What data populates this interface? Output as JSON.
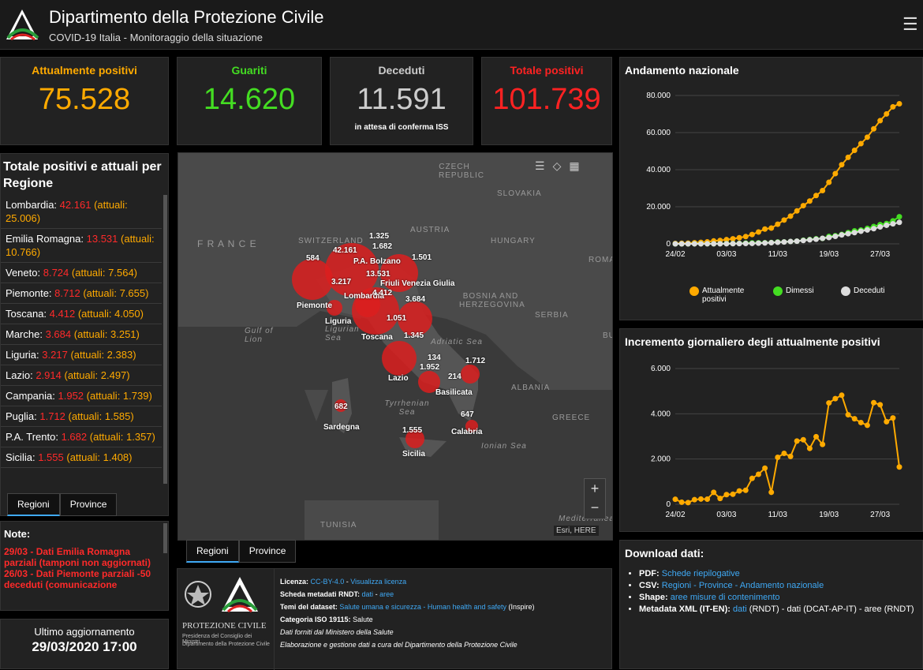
{
  "header": {
    "title": "Dipartimento della Protezione Civile",
    "subtitle": "COVID-19 Italia - Monitoraggio della situazione"
  },
  "stats": [
    {
      "label": "Attualmente positivi",
      "value": "75.528",
      "color": "#ffaa00"
    },
    {
      "label": "Guariti",
      "value": "14.620",
      "color": "#44dd22"
    },
    {
      "label": "Deceduti",
      "value": "11.591",
      "color": "#cccccc",
      "note": "in attesa di conferma ISS"
    },
    {
      "label": "Totale positivi",
      "value": "101.739",
      "color": "#ff2222"
    }
  ],
  "regions": {
    "title": "Totale positivi e attuali per Regione",
    "items": [
      {
        "name": "Lombardia:",
        "total": "42.161",
        "attuali": "(attuali: 25.006)"
      },
      {
        "name": "Emilia Romagna:",
        "total": "13.531",
        "attuali": "(attuali: 10.766)"
      },
      {
        "name": "Veneto:",
        "total": "8.724",
        "attuali": "(attuali: 7.564)"
      },
      {
        "name": "Piemonte:",
        "total": "8.712",
        "attuali": "(attuali: 7.655)"
      },
      {
        "name": "Toscana:",
        "total": "4.412",
        "attuali": "(attuali: 4.050)"
      },
      {
        "name": "Marche:",
        "total": "3.684",
        "attuali": "(attuali: 3.251)"
      },
      {
        "name": "Liguria:",
        "total": "3.217",
        "attuali": "(attuali: 2.383)"
      },
      {
        "name": "Lazio:",
        "total": "2.914",
        "attuali": "(attuali: 2.497)"
      },
      {
        "name": "Campania:",
        "total": "1.952",
        "attuali": "(attuali: 1.739)"
      },
      {
        "name": "Puglia:",
        "total": "1.712",
        "attuali": "(attuali: 1.585)"
      },
      {
        "name": "P.A. Trento:",
        "total": "1.682",
        "attuali": "(attuali: 1.357)"
      },
      {
        "name": "Sicilia:",
        "total": "1.555",
        "attuali": "(attuali: 1.408)"
      }
    ],
    "tabs": [
      "Regioni",
      "Province"
    ]
  },
  "notes": {
    "title": "Note:",
    "lines": [
      "29/03 - Dati  Emilia Romagna parziali (tamponi non aggiornati)",
      "26/03 - Dati Piemonte parziali -50 deceduti (comunicazione"
    ]
  },
  "update": {
    "label": "Ultimo aggiornamento",
    "value": "29/03/2020 17:00"
  },
  "map": {
    "tabs": [
      "Regioni",
      "Province"
    ],
    "attribution": "Esri, HERE",
    "geo_labels": [
      "CZECH REPUBLIC",
      "SLOVAKIA",
      "AUSTRIA",
      "HUNGARY",
      "F R A N C E",
      "SWITZERLAND",
      "ROMA",
      "BOSNIA AND HERZEGOVINA",
      "SERBIA",
      "Gulf of Lion",
      "Adriatic Sea",
      "Ligurian Sea",
      "Tyrrhenian Sea",
      "ALBANIA",
      "GREECE",
      "Ionian Sea",
      "TUNISIA",
      "Mediterranean",
      "BU"
    ],
    "bubbles": [
      {
        "label": "584"
      },
      {
        "label": "42.161"
      },
      {
        "label": "1.325"
      },
      {
        "label": "1.682"
      },
      {
        "label": "P.A. Bolzano"
      },
      {
        "label": "1.501"
      },
      {
        "label": "13.531"
      },
      {
        "label": "Friuli Venezia Giulia"
      },
      {
        "label": "3.217"
      },
      {
        "label": "Lombardia"
      },
      {
        "label": "4.412"
      },
      {
        "label": "Piemonte"
      },
      {
        "label": "3.684"
      },
      {
        "label": "Liguria"
      },
      {
        "label": "1.051"
      },
      {
        "label": "Toscana"
      },
      {
        "label": "1.345"
      },
      {
        "label": "134"
      },
      {
        "label": "1.712"
      },
      {
        "label": "1.952"
      },
      {
        "label": "Lazio"
      },
      {
        "label": "214"
      },
      {
        "label": "Basilicata"
      },
      {
        "label": "682"
      },
      {
        "label": "Sardegna"
      },
      {
        "label": "647"
      },
      {
        "label": "1.555"
      },
      {
        "label": "Calabria"
      },
      {
        "label": "Sicilia"
      }
    ]
  },
  "info": {
    "licenza_label": "Licenza:",
    "licenza_link": "CC-BY-4.0",
    "licenza_view": "Visualizza licenza",
    "rndt_label": "Scheda metadati RNDT:",
    "rndt_dati": "dati",
    "rndt_aree": "aree",
    "temi_label": "Temi del dataset:",
    "temi_link": "Salute umana e sicurezza - Human health and safety",
    "temi_suffix": "(Inspire)",
    "iso_label": "Categoria ISO 19115:",
    "iso_value": "Salute",
    "fonte": "Dati forniti dal Ministero della Salute",
    "elab": "Elaborazione e gestione dati a cura del Dipartimento della Protezione Civile",
    "logo_text1": "PROTEZIONE CIVILE",
    "logo_text2": "Presidenza del Consiglio dei Ministri",
    "logo_text3": "Dipartimento della Protezione Civile"
  },
  "chart1": {
    "title": "Andamento nazionale",
    "legend": [
      "Attualmente positivi",
      "Dimessi",
      "Deceduti"
    ]
  },
  "chart2": {
    "title": "Incremento giornaliero degli attualmente positivi"
  },
  "chart_data": [
    {
      "type": "line",
      "title": "Andamento nazionale",
      "ylim": [
        0,
        80000
      ],
      "yticks": [
        "0",
        "20.000",
        "40.000",
        "60.000",
        "80.000"
      ],
      "xticks": [
        "24/02",
        "03/03",
        "11/03",
        "19/03",
        "27/03"
      ],
      "series": [
        {
          "name": "Attualmente positivi",
          "color": "#ffaa00",
          "values": [
            221,
            311,
            385,
            588,
            821,
            1049,
            1577,
            1835,
            2263,
            2706,
            3296,
            3916,
            5061,
            6387,
            7985,
            8514,
            10590,
            12839,
            14955,
            17750,
            20603,
            23073,
            26062,
            28710,
            33190,
            37860,
            42681,
            46638,
            50418,
            54030,
            57521,
            62013,
            66414,
            70065,
            73880,
            75528
          ]
        },
        {
          "name": "Dimessi",
          "color": "#44dd22",
          "values": [
            1,
            1,
            3,
            45,
            46,
            46,
            50,
            83,
            149,
            160,
            276,
            414,
            523,
            589,
            622,
            724,
            1004,
            1045,
            1258,
            1439,
            1966,
            2335,
            2749,
            2941,
            4025,
            4440,
            5129,
            6072,
            7024,
            7432,
            8326,
            9362,
            10361,
            10950,
            12384,
            14620
          ]
        },
        {
          "name": "Deceduti",
          "color": "#dddddd",
          "values": [
            7,
            10,
            12,
            17,
            21,
            29,
            34,
            52,
            79,
            107,
            148,
            197,
            233,
            366,
            463,
            631,
            827,
            1016,
            1266,
            1441,
            1809,
            2158,
            2503,
            2978,
            3405,
            4032,
            4825,
            5476,
            6077,
            6820,
            7503,
            8165,
            9134,
            10023,
            10779,
            11591
          ]
        }
      ]
    },
    {
      "type": "line",
      "title": "Incremento giornaliero degli attualmente positivi",
      "ylim": [
        0,
        6000
      ],
      "yticks": [
        "0",
        "2.000",
        "4.000",
        "6.000"
      ],
      "xticks": [
        "24/02",
        "03/03",
        "11/03",
        "19/03",
        "27/03"
      ],
      "series": [
        {
          "name": "",
          "color": "#ffaa00",
          "values": [
            221,
            90,
            74,
            203,
            233,
            228,
            528,
            258,
            428,
            443,
            590,
            620,
            1145,
            1326,
            1598,
            529,
            2076,
            2249,
            2116,
            2795,
            2853,
            2470,
            2989,
            2648,
            4480,
            4670,
            4821,
            3957,
            3780,
            3612,
            3491,
            4492,
            4401,
            3651,
            3815,
            1648
          ]
        }
      ]
    }
  ],
  "download": {
    "title": "Download dati:",
    "items": [
      {
        "label": "PDF:",
        "links": "Schede riepilogative",
        "extra": ""
      },
      {
        "label": "CSV:",
        "links": "Regioni - Province - Andamento nazionale",
        "extra": ""
      },
      {
        "label": "Shape:",
        "links": "aree misure di contenimento",
        "extra": ""
      },
      {
        "label": "Metadata XML (IT-EN):",
        "links": "dati",
        "extra": "(RNDT) - dati (DCAT-AP-IT) - aree (RNDT)"
      }
    ]
  }
}
